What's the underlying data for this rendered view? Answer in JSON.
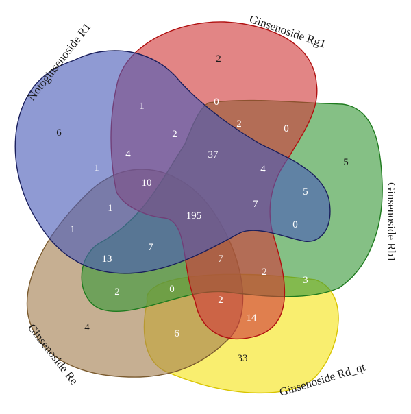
{
  "diagram": {
    "type": "venn",
    "set_count": 5,
    "sets": [
      {
        "key": "rd",
        "name": "Ginsenoside Rd_qt",
        "fill": "#f5e416",
        "stroke": "#d8c400"
      },
      {
        "key": "re",
        "name": "Ginsenoside Re",
        "fill": "#a37e4f",
        "stroke": "#7a5a2e"
      },
      {
        "key": "rb1",
        "name": "Ginsenoside Rb1",
        "fill": "#3a9a3a",
        "stroke": "#1e7a1e"
      },
      {
        "key": "rg1",
        "name": "Ginsenoside Rg1",
        "fill": "#d03a3a",
        "stroke": "#b01010"
      },
      {
        "key": "r1",
        "name": "Notoginsenoside R1",
        "fill": "#4a5cb8",
        "stroke": "#1a1f5c"
      }
    ],
    "regions": [
      {
        "value": "2",
        "tone": "dark"
      },
      {
        "value": "0",
        "tone": "light"
      },
      {
        "value": "2",
        "tone": "light"
      },
      {
        "value": "0",
        "tone": "light"
      },
      {
        "value": "6",
        "tone": "dark"
      },
      {
        "value": "1",
        "tone": "light"
      },
      {
        "value": "2",
        "tone": "light"
      },
      {
        "value": "4",
        "tone": "light"
      },
      {
        "value": "37",
        "tone": "light"
      },
      {
        "value": "4",
        "tone": "light"
      },
      {
        "value": "5",
        "tone": "dark"
      },
      {
        "value": "1",
        "tone": "light"
      },
      {
        "value": "10",
        "tone": "light"
      },
      {
        "value": "5",
        "tone": "light"
      },
      {
        "value": "1",
        "tone": "light"
      },
      {
        "value": "195",
        "tone": "light"
      },
      {
        "value": "7",
        "tone": "light"
      },
      {
        "value": "1",
        "tone": "light"
      },
      {
        "value": "0",
        "tone": "light"
      },
      {
        "value": "13",
        "tone": "light"
      },
      {
        "value": "7",
        "tone": "light"
      },
      {
        "value": "7",
        "tone": "light"
      },
      {
        "value": "2",
        "tone": "light"
      },
      {
        "value": "3",
        "tone": "light"
      },
      {
        "value": "2",
        "tone": "light"
      },
      {
        "value": "0",
        "tone": "light"
      },
      {
        "value": "2",
        "tone": "light"
      },
      {
        "value": "14",
        "tone": "light"
      },
      {
        "value": "4",
        "tone": "dark"
      },
      {
        "value": "6",
        "tone": "light"
      },
      {
        "value": "33",
        "tone": "dark"
      }
    ]
  }
}
